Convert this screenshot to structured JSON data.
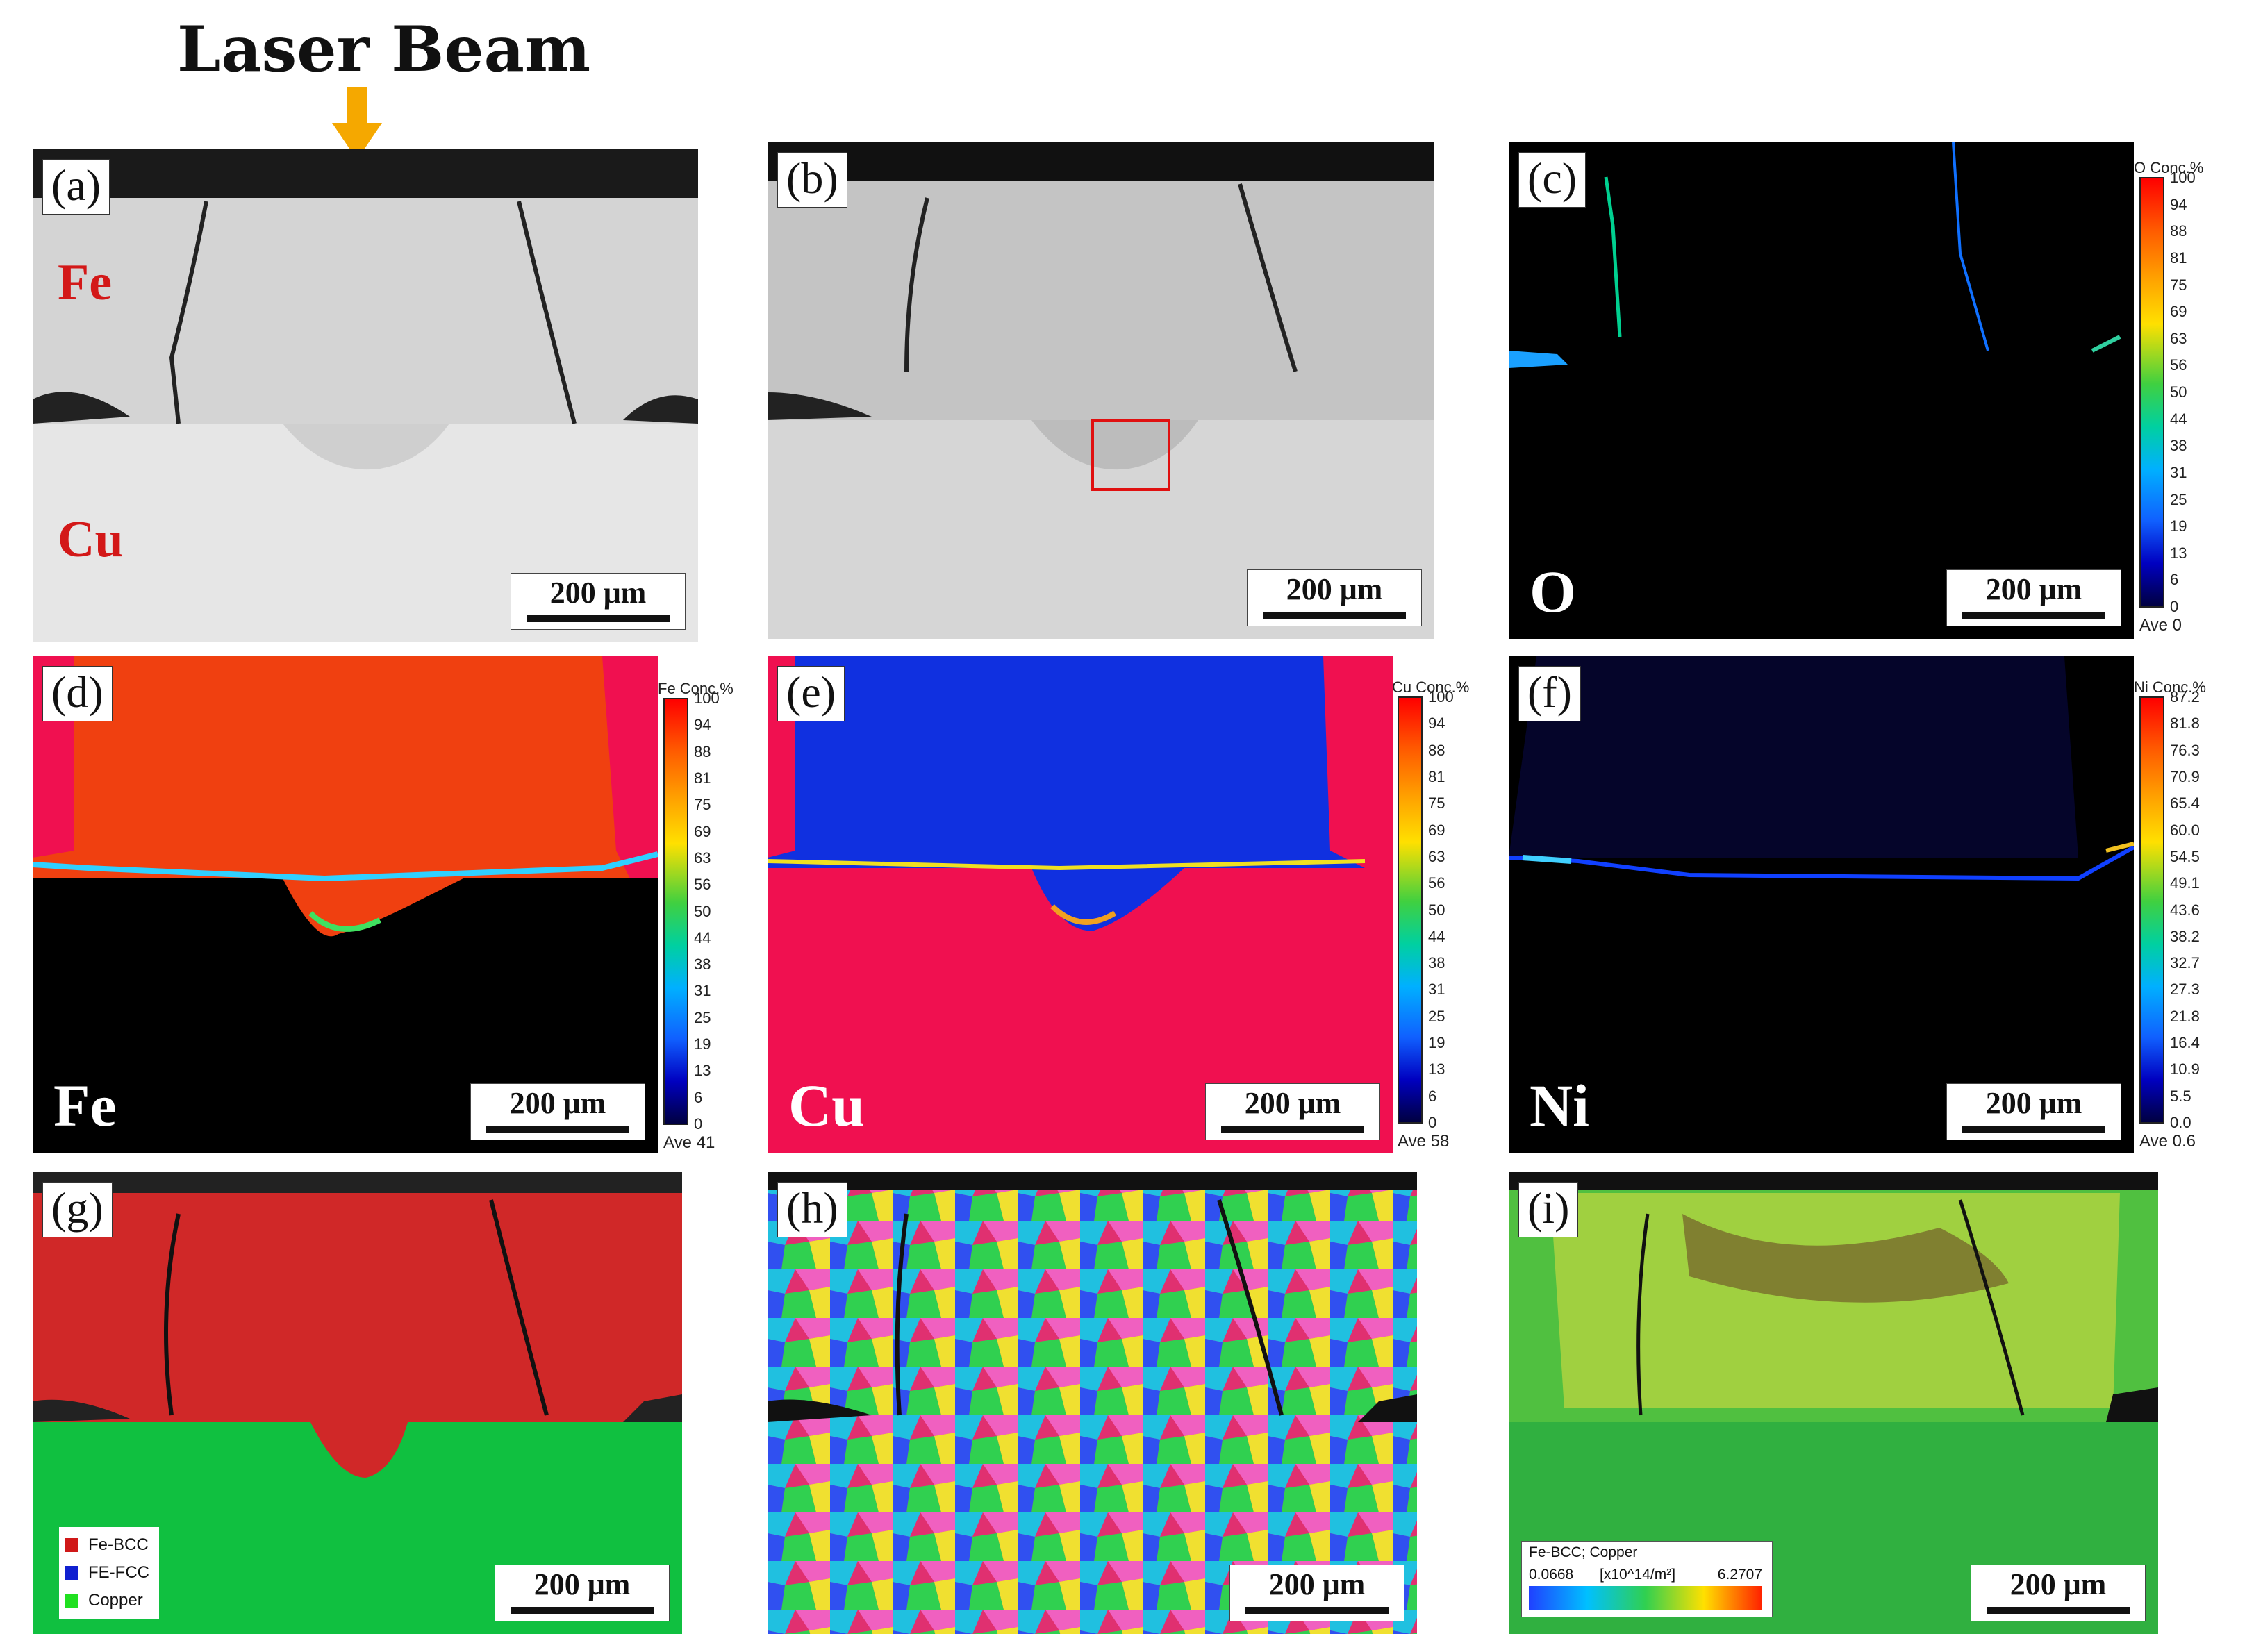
{
  "title": "Laser Beam",
  "scale_bar": "200 μm",
  "panels": {
    "a": {
      "label": "(a)",
      "materials": [
        "Fe",
        "Cu"
      ]
    },
    "b": {
      "label": "(b)"
    },
    "c": {
      "label": "(c)",
      "element": "O",
      "colorbar": {
        "title": "O  Conc.%",
        "ticks": [
          "100",
          "94",
          "88",
          "81",
          "75",
          "69",
          "63",
          "56",
          "50",
          "44",
          "38",
          "31",
          "25",
          "19",
          "13",
          "6",
          "0"
        ],
        "ave": "Ave 0"
      }
    },
    "d": {
      "label": "(d)",
      "element": "Fe",
      "colorbar": {
        "title": "Fe  Conc.%",
        "ticks": [
          "100",
          "94",
          "88",
          "81",
          "75",
          "69",
          "63",
          "56",
          "50",
          "44",
          "38",
          "31",
          "25",
          "19",
          "13",
          "6",
          "0"
        ],
        "ave": "Ave 41"
      }
    },
    "e": {
      "label": "(e)",
      "element": "Cu",
      "colorbar": {
        "title": "Cu  Conc.%",
        "ticks": [
          "100",
          "94",
          "88",
          "81",
          "75",
          "69",
          "63",
          "56",
          "50",
          "44",
          "38",
          "31",
          "25",
          "19",
          "13",
          "6",
          "0"
        ],
        "ave": "Ave 58"
      }
    },
    "f": {
      "label": "(f)",
      "element": "Ni",
      "colorbar": {
        "title": "Ni  Conc.%",
        "ticks": [
          "87.2",
          "81.8",
          "76.3",
          "70.9",
          "65.4",
          "60.0",
          "54.5",
          "49.1",
          "43.6",
          "38.2",
          "32.7",
          "27.3",
          "21.8",
          "16.4",
          "10.9",
          "5.5",
          "0.0"
        ],
        "ave": "Ave 0.6"
      }
    },
    "g": {
      "label": "(g)",
      "legend": [
        {
          "name": "Fe-BCC",
          "color": "#d01818"
        },
        {
          "name": "FE-FCC",
          "color": "#1020d0"
        },
        {
          "name": "Copper",
          "color": "#20e020"
        }
      ]
    },
    "h": {
      "label": "(h)"
    },
    "i": {
      "label": "(i)",
      "density_legend": {
        "title": "Fe-BCC; Copper",
        "min": "0.0668",
        "unit": "[x10^14/m²]",
        "max": "6.2707"
      }
    }
  }
}
